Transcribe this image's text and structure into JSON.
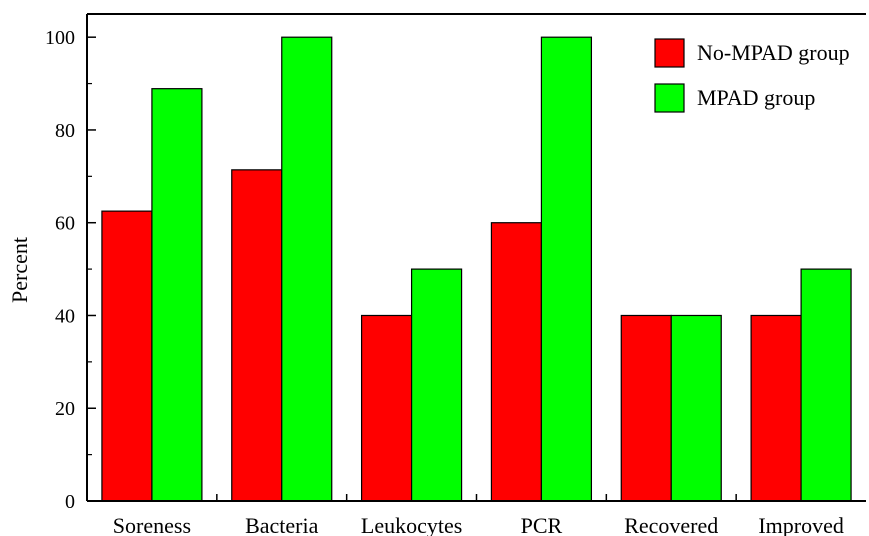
{
  "chart_data": {
    "type": "bar",
    "categories": [
      "Soreness",
      "Bacteria",
      "Leukocytes",
      "PCR",
      "Recovered",
      "Improved"
    ],
    "series": [
      {
        "name": "No-MPAD group",
        "color": "#ff0000",
        "values": [
          62.5,
          71.4,
          40,
          60,
          40,
          40
        ]
      },
      {
        "name": "MPAD group",
        "color": "#00ff00",
        "values": [
          88.9,
          100,
          50,
          100,
          40,
          50
        ]
      }
    ],
    "ylabel": "Percent",
    "xlabel": "",
    "ylim": [
      0,
      105
    ],
    "yticks": [
      0,
      20,
      40,
      60,
      80,
      100
    ],
    "grid": false,
    "legend_position": "top-right"
  }
}
